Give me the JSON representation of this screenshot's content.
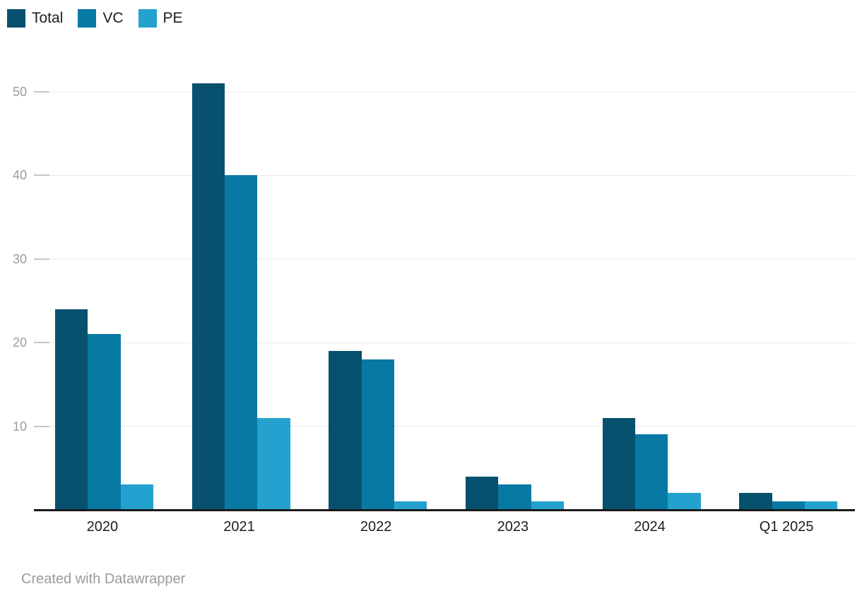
{
  "chart_data": {
    "type": "bar",
    "title": "",
    "xlabel": "",
    "ylabel": "",
    "categories": [
      "2020",
      "2021",
      "2022",
      "2023",
      "2024",
      "Q1 2025"
    ],
    "series": [
      {
        "name": "Total",
        "color": "#07506e",
        "values": [
          24,
          51,
          19,
          4,
          11,
          2
        ]
      },
      {
        "name": "VC",
        "color": "#0879a3",
        "values": [
          21,
          40,
          18,
          3,
          9,
          1
        ]
      },
      {
        "name": "PE",
        "color": "#24a2cf",
        "values": [
          3,
          11,
          1,
          1,
          2,
          1
        ]
      }
    ],
    "ylim": [
      0,
      51.5
    ],
    "yticks": [
      10,
      20,
      30,
      40,
      50
    ],
    "grid": true,
    "legend_position": "top-left"
  },
  "footer": {
    "credit": "Created with Datawrapper"
  },
  "colors": {
    "background": "#ffffff",
    "grid": "#e8e8e8",
    "tick": "#c6c6c6",
    "y_label_text": "#9c9c9c",
    "x_label_text": "#1d1d1d",
    "legend_text": "#1d1d1d",
    "baseline": "#19191b",
    "credit_text": "#9b9b9b"
  }
}
